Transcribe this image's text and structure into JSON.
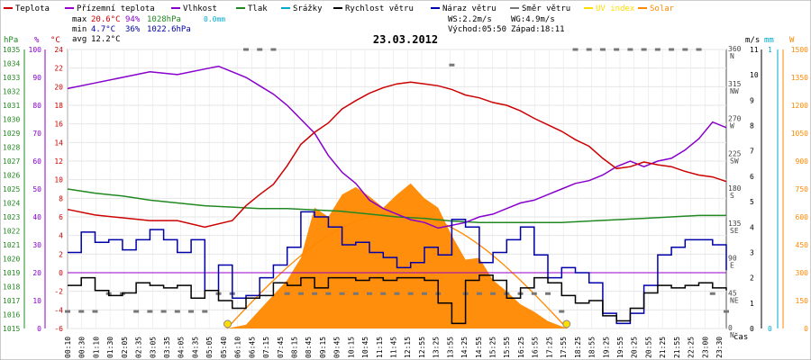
{
  "colors": {
    "temp": "#cc0000",
    "feels": "#9900cc",
    "humidity": "#8800cc",
    "pressure": "#228822",
    "rain": "#00aacc",
    "wind": "#000000",
    "gust": "#0000aa",
    "dir": "#777777",
    "uv": "#ffdd00",
    "solar": "#ff8800",
    "bg": "#ffffff",
    "grid": "#e6e6e6"
  },
  "chart_data": {
    "type": "line",
    "title": "23.03.2012",
    "legend": [
      {
        "key": "temp",
        "label": "Teplota"
      },
      {
        "key": "feels",
        "label": "Přízemní teplota"
      },
      {
        "key": "humidity",
        "label": "Vlhkost"
      },
      {
        "key": "pressure",
        "label": "Tlak"
      },
      {
        "key": "rain",
        "label": "Srážky"
      },
      {
        "key": "wind",
        "label": "Rychlost větru"
      },
      {
        "key": "gust",
        "label": "Náraz větru"
      },
      {
        "key": "dir",
        "label": "Směr větru"
      },
      {
        "key": "uv",
        "label": "UV index"
      },
      {
        "key": "solar",
        "label": "Solar"
      }
    ],
    "stats": {
      "max_label": "max",
      "max_temp": "20.6°C",
      "max_hum": "94%",
      "max_press": "1028hPa",
      "rain_total": "0.0mm",
      "min_label": "min",
      "min_temp": "4.7°C",
      "min_hum": "36%",
      "min_press": "1022.6hPa",
      "avg_label": "avg",
      "avg_temp": "12.2°C",
      "ws": "WS:2.2m/s",
      "wg": "WG:4.9m/s",
      "sunrise": "Východ:05:50",
      "sunset": "Západ:18:11"
    },
    "axis_units": {
      "pressure": "hPa",
      "humidity": "%",
      "temp": "°C",
      "wind": "m/s",
      "rain": "mm",
      "solar": "W",
      "time": "čas"
    },
    "x_ticks": [
      "00:10",
      "00:30",
      "01:10",
      "01:30",
      "02:05",
      "02:35",
      "03:05",
      "03:35",
      "04:05",
      "04:35",
      "05:05",
      "05:40",
      "06:10",
      "06:45",
      "07:15",
      "07:45",
      "08:15",
      "08:45",
      "09:15",
      "09:45",
      "10:15",
      "10:45",
      "11:15",
      "11:45",
      "12:15",
      "12:55",
      "13:25",
      "13:55",
      "14:25",
      "14:55",
      "15:25",
      "15:55",
      "16:25",
      "16:55",
      "17:25",
      "17:55",
      "18:25",
      "18:55",
      "19:25",
      "19:55",
      "20:25",
      "20:55",
      "21:25",
      "21:55",
      "22:25",
      "23:00",
      "23:30"
    ],
    "y_left_temp": [
      "-6",
      "-4",
      "-2",
      "0",
      "2",
      "4",
      "6",
      "8",
      "10",
      "12",
      "14",
      "16",
      "18",
      "20",
      "22",
      "24"
    ],
    "y_left_hum": [
      "0",
      "10",
      "20",
      "30",
      "40",
      "50",
      "60",
      "70",
      "80",
      "90",
      "100"
    ],
    "y_left_press": [
      "1015",
      "1016",
      "1017",
      "1018",
      "1019",
      "1020",
      "1021",
      "1022",
      "1023",
      "1024",
      "1025",
      "1026",
      "1027",
      "1028",
      "1029",
      "1030",
      "1031",
      "1032",
      "1033",
      "1034",
      "1035"
    ],
    "y_right_dir": [
      "0",
      "45",
      "90",
      "135",
      "180",
      "225",
      "270",
      "315",
      "360"
    ],
    "y_right_dir_labels": [
      "N",
      "NE",
      "E",
      "SE",
      "S",
      "SW",
      "W",
      "NW",
      "N"
    ],
    "y_right_wind": [
      "0",
      "1",
      "2",
      "3",
      "4",
      "5",
      "6",
      "7",
      "8",
      "9",
      "10",
      "11"
    ],
    "y_right_rain": [
      "0",
      "1"
    ],
    "y_right_solar": [
      "0",
      "150",
      "300",
      "450",
      "600",
      "750",
      "900",
      "1050",
      "1200",
      "1350",
      "1500"
    ],
    "temp_range": [
      -6,
      24
    ],
    "hum_range": [
      0,
      100
    ],
    "press_range": [
      1015,
      1035
    ],
    "wind_range": [
      0,
      11
    ],
    "solar_range": [
      0,
      1500
    ],
    "dir_range": [
      0,
      360
    ],
    "series": {
      "temp_hours": [
        0,
        1,
        2,
        3,
        4,
        5,
        6,
        6.5,
        7,
        7.5,
        8,
        8.5,
        9,
        9.5,
        10,
        10.5,
        11,
        11.5,
        12,
        12.5,
        13,
        13.5,
        14,
        14.5,
        15,
        15.5,
        16,
        16.5,
        17,
        17.5,
        18,
        18.5,
        19,
        19.5,
        20,
        20.5,
        21,
        21.5,
        22,
        22.5,
        23,
        23.5,
        24
      ],
      "temp": [
        6.8,
        6.2,
        5.9,
        5.6,
        5.6,
        4.9,
        5.6,
        7.2,
        8.4,
        9.5,
        11.5,
        13.8,
        15.1,
        16.1,
        17.6,
        18.5,
        19.3,
        19.9,
        20.3,
        20.5,
        20.3,
        20.1,
        19.7,
        19.1,
        18.8,
        18.3,
        18.0,
        17.4,
        16.6,
        15.9,
        15.2,
        14.3,
        13.6,
        12.3,
        11.2,
        11.4,
        11.9,
        11.6,
        11.4,
        10.9,
        10.5,
        10.3,
        9.8
      ],
      "hum_hours": [
        0,
        1,
        2,
        3,
        4,
        5,
        5.5,
        6,
        6.5,
        7,
        7.5,
        8,
        8.5,
        9,
        9.5,
        10,
        10.5,
        11,
        11.5,
        12,
        12.5,
        13,
        13.5,
        14,
        14.5,
        15,
        15.5,
        16,
        16.5,
        17,
        17.5,
        18,
        18.5,
        19,
        19.5,
        20,
        20.5,
        21,
        21.5,
        22,
        22.5,
        23,
        23.5,
        24
      ],
      "humidity": [
        86,
        88,
        90,
        92,
        91,
        93,
        94,
        92,
        90,
        87,
        84,
        80,
        75,
        70,
        62,
        56,
        52,
        46,
        43,
        41,
        39,
        38,
        36,
        37,
        38,
        40,
        41,
        43,
        45,
        46,
        48,
        50,
        52,
        53,
        55,
        58,
        60,
        58,
        60,
        61,
        64,
        68,
        74,
        72
      ],
      "press_hours": [
        0,
        1,
        2,
        3,
        4,
        5,
        6,
        7,
        8,
        9,
        10,
        11,
        12,
        13,
        14,
        15,
        16,
        17,
        18,
        19,
        20,
        21,
        22,
        23,
        24
      ],
      "pressure": [
        1025.0,
        1024.7,
        1024.5,
        1024.2,
        1024.0,
        1023.8,
        1023.7,
        1023.6,
        1023.6,
        1023.5,
        1023.4,
        1023.2,
        1023.0,
        1022.9,
        1022.7,
        1022.6,
        1022.6,
        1022.6,
        1022.6,
        1022.7,
        1022.8,
        1022.9,
        1023.0,
        1023.1,
        1023.1
      ],
      "gust_hours": [
        0,
        0.5,
        1,
        1.5,
        2,
        2.5,
        3,
        3.5,
        4,
        4.5,
        5,
        5.5,
        6,
        6.5,
        7,
        7.5,
        8,
        8.5,
        9,
        9.5,
        10,
        10.5,
        11,
        11.5,
        12,
        12.5,
        13,
        13.5,
        14,
        14.5,
        15,
        15.5,
        16,
        16.5,
        17,
        17.5,
        18,
        18.5,
        19,
        19.5,
        20,
        20.5,
        21,
        21.5,
        22,
        22.5,
        23,
        23.5,
        24
      ],
      "gust": [
        3.0,
        3.8,
        3.4,
        3.5,
        3.1,
        3.5,
        3.9,
        3.5,
        3.0,
        3.5,
        1.5,
        2.5,
        1.2,
        1.3,
        2.0,
        2.5,
        3.2,
        4.6,
        4.4,
        4.0,
        3.3,
        3.4,
        3.0,
        2.8,
        2.4,
        2.6,
        3.2,
        2.9,
        4.3,
        4.0,
        2.6,
        3.0,
        3.5,
        4.0,
        2.9,
        2.0,
        2.4,
        2.2,
        1.8,
        0.6,
        0.2,
        0.6,
        1.7,
        2.9,
        3.2,
        3.5,
        3.5,
        3.3,
        2.3
      ],
      "wind_hours": [
        0,
        0.5,
        1,
        1.5,
        2,
        2.5,
        3,
        3.5,
        4,
        4.5,
        5,
        5.5,
        6,
        6.5,
        7,
        7.5,
        8,
        8.5,
        9,
        9.5,
        10,
        10.5,
        11,
        11.5,
        12,
        12.5,
        13,
        13.5,
        14,
        14.5,
        15,
        15.5,
        16,
        16.5,
        17,
        17.5,
        18,
        18.5,
        19,
        19.5,
        20,
        20.5,
        21,
        21.5,
        22,
        22.5,
        23,
        23.5,
        24
      ],
      "wind": [
        1.7,
        2.0,
        1.5,
        1.3,
        1.4,
        1.8,
        1.7,
        1.6,
        1.7,
        1.2,
        1.5,
        1.1,
        0.8,
        1.2,
        1.3,
        1.8,
        1.7,
        2.0,
        1.6,
        2.0,
        2.0,
        1.9,
        2.0,
        1.9,
        2.0,
        2.0,
        1.9,
        1.0,
        0.2,
        1.9,
        2.1,
        1.9,
        1.2,
        1.6,
        2.0,
        1.8,
        1.3,
        1.0,
        1.1,
        0.5,
        0.3,
        0.8,
        1.4,
        1.7,
        1.6,
        1.7,
        1.8,
        1.6,
        1.5
      ],
      "solar_hours": [
        5.8,
        6.5,
        7,
        7.5,
        8,
        8.5,
        9,
        9.5,
        10,
        10.5,
        11,
        11.5,
        12,
        12.5,
        13,
        13.5,
        14,
        14.5,
        15,
        15.5,
        16,
        16.5,
        17,
        17.5,
        18.2
      ],
      "solar": [
        0,
        20,
        100,
        180,
        260,
        380,
        650,
        600,
        720,
        760,
        710,
        650,
        720,
        780,
        700,
        650,
        500,
        370,
        380,
        260,
        200,
        130,
        90,
        40,
        0
      ],
      "dir_hours": [
        0,
        0.5,
        1,
        1.5,
        2,
        2.5,
        3,
        3.5,
        4,
        4.5,
        5,
        5.5,
        6,
        6.5,
        7,
        7.5,
        8,
        8.5,
        9,
        9.5,
        10,
        10.5,
        11,
        11.5,
        12,
        12.5,
        13,
        13.5,
        14,
        14.5,
        15,
        15.5,
        16,
        16.5,
        17,
        17.5,
        18,
        18.5,
        19,
        19.5,
        20,
        20.5,
        21,
        21.5,
        22,
        22.5,
        23,
        23.5,
        24
      ],
      "direction": [
        22,
        22,
        22,
        45,
        45,
        22,
        22,
        22,
        22,
        22,
        22,
        45,
        45,
        360,
        360,
        360,
        45,
        45,
        45,
        45,
        45,
        45,
        45,
        45,
        45,
        45,
        45,
        45,
        340,
        45,
        45,
        45,
        45,
        45,
        45,
        45,
        22,
        360,
        360,
        360,
        360,
        360,
        360,
        360,
        360,
        360,
        360,
        45,
        22
      ]
    }
  }
}
